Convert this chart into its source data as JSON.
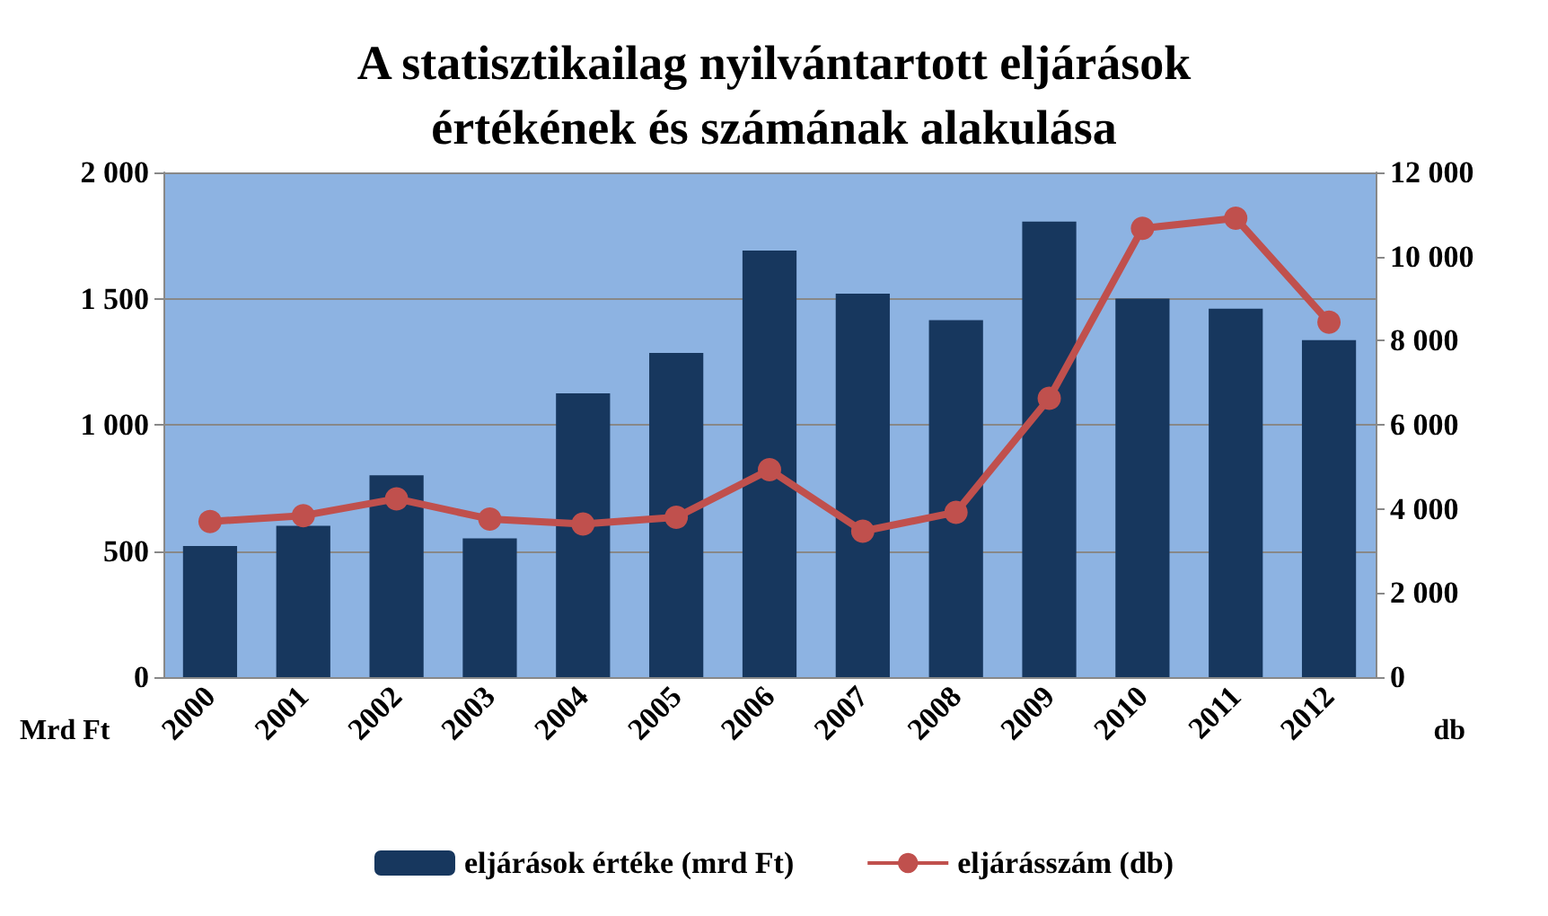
{
  "chart_data": {
    "type": "bar",
    "title": "A statisztikailag nyilvántartott eljárások\nértékének és számának alakulása",
    "ylabel": "Mrd Ft",
    "y2label": "db",
    "categories": [
      "2000",
      "2001",
      "2002",
      "2003",
      "2004",
      "2005",
      "2006",
      "2007",
      "2008",
      "2009",
      "2010",
      "2011",
      "2012"
    ],
    "series": [
      {
        "name": "eljárások értéke (mrd Ft)",
        "color": "#17375e",
        "values": [
          520,
          600,
          800,
          550,
          1125,
          1285,
          1690,
          1520,
          1415,
          1805,
          1500,
          1460,
          1335
        ]
      },
      {
        "name": "eljárásszám (db)",
        "type": "line",
        "axis": "y2",
        "color": "#c0504d",
        "marker": "circle",
        "values": [
          3700,
          3840,
          4240,
          3760,
          3640,
          3800,
          4930,
          3470,
          3920,
          6630,
          10670,
          10910,
          8440
        ]
      }
    ],
    "ylim": [
      0,
      2000
    ],
    "yticks": [
      0,
      500,
      {
        "value": 1000,
        "label": "1 000"
      },
      {
        "value": 1500,
        "label": "1 500"
      },
      {
        "value": 2000,
        "label": "2 000"
      }
    ],
    "y2lim": [
      0,
      12000
    ],
    "y2ticks": [
      0,
      {
        "value": 2000,
        "label": "2 000"
      },
      {
        "value": 4000,
        "label": "4 000"
      },
      {
        "value": 6000,
        "label": "6 000"
      },
      {
        "value": 8000,
        "label": "8 000"
      },
      {
        "value": 10000,
        "label": "10 000"
      },
      {
        "value": 12000,
        "label": "12 000"
      }
    ],
    "grid": "y",
    "legend": "bottom"
  }
}
